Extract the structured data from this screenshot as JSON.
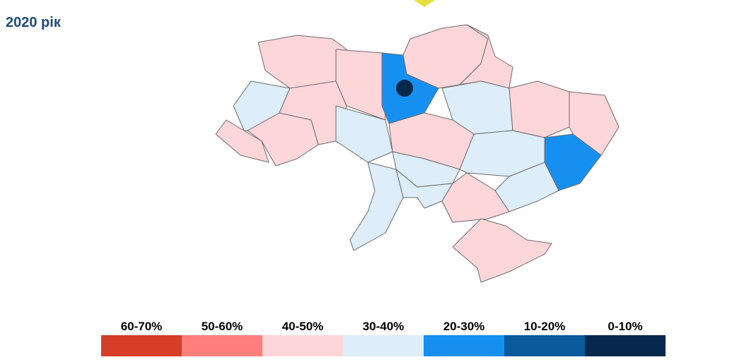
{
  "title": "2020 рік",
  "legend": {
    "items": [
      {
        "label": "60-70%",
        "color": "#d63e2a"
      },
      {
        "label": "50-60%",
        "color": "#ff7f7d"
      },
      {
        "label": "40-50%",
        "color": "#fdd6da"
      },
      {
        "label": "30-40%",
        "color": "#ddedfa"
      },
      {
        "label": "20-30%",
        "color": "#1690f0"
      },
      {
        "label": "10-20%",
        "color": "#0a5a9c"
      },
      {
        "label": "0-10%",
        "color": "#06284c"
      }
    ]
  }
}
